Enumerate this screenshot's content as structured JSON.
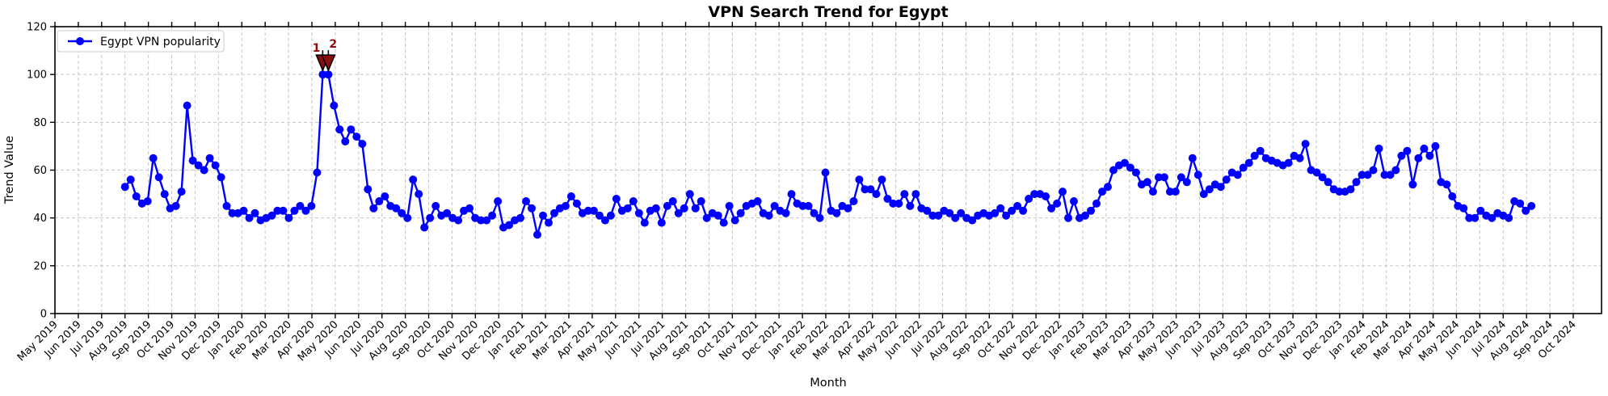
{
  "chart_data": {
    "type": "line",
    "title": "VPN Search Trend for Egypt",
    "xlabel": "Month",
    "ylabel": "Trend Value",
    "legend_label": "Egypt VPN popularity",
    "legend_location": "upper left",
    "grid": true,
    "ylim": [
      0,
      120
    ],
    "yticks": [
      0,
      20,
      40,
      60,
      80,
      100,
      120
    ],
    "line_color": "#0000ff",
    "marker": "circle",
    "annotation_color": "#8b0e0e",
    "cadence": "weekly",
    "x_start_label": "Aug 2019",
    "x_end_label": "Jul 2024",
    "x_tick_labels": [
      "May 2019",
      "Jun 2019",
      "Jul 2019",
      "Aug 2019",
      "Sep 2019",
      "Oct 2019",
      "Nov 2019",
      "Dec 2019",
      "Jan 2020",
      "Feb 2020",
      "Mar 2020",
      "Apr 2020",
      "May 2020",
      "Jun 2020",
      "Jul 2020",
      "Aug 2020",
      "Sep 2020",
      "Oct 2020",
      "Nov 2020",
      "Dec 2020",
      "Jan 2021",
      "Feb 2021",
      "Mar 2021",
      "Apr 2021",
      "May 2021",
      "Jun 2021",
      "Jul 2021",
      "Aug 2021",
      "Sep 2021",
      "Oct 2021",
      "Nov 2021",
      "Dec 2021",
      "Jan 2022",
      "Feb 2022",
      "Mar 2022",
      "Apr 2022",
      "May 2022",
      "Jun 2022",
      "Jul 2022",
      "Aug 2022",
      "Sep 2022",
      "Oct 2022",
      "Nov 2022",
      "Dec 2022",
      "Jan 2023",
      "Feb 2023",
      "Mar 2023",
      "Apr 2023",
      "May 2023",
      "Jun 2023",
      "Jul 2023",
      "Aug 2023",
      "Sep 2023",
      "Oct 2023",
      "Nov 2023",
      "Dec 2023",
      "Jan 2024",
      "Feb 2024",
      "Mar 2024",
      "Apr 2024",
      "May 2024",
      "Jun 2024",
      "Jul 2024",
      "Aug 2024",
      "Sep 2024",
      "Oct 2024"
    ],
    "values": [
      53,
      56,
      49,
      46,
      47,
      65,
      57,
      50,
      44,
      45,
      51,
      87,
      64,
      62,
      60,
      65,
      62,
      57,
      45,
      42,
      42,
      43,
      40,
      42,
      39,
      40,
      41,
      43,
      43,
      40,
      43,
      45,
      43,
      45,
      59,
      100,
      100,
      87,
      77,
      72,
      77,
      74,
      71,
      52,
      44,
      47,
      49,
      45,
      44,
      42,
      40,
      56,
      50,
      36,
      40,
      45,
      41,
      42,
      40,
      39,
      43,
      44,
      40,
      39,
      39,
      41,
      47,
      36,
      37,
      39,
      40,
      47,
      44,
      33,
      41,
      38,
      42,
      44,
      45,
      49,
      46,
      42,
      43,
      43,
      41,
      39,
      41,
      48,
      43,
      44,
      47,
      42,
      38,
      43,
      44,
      38,
      45,
      47,
      42,
      44,
      50,
      44,
      47,
      40,
      42,
      41,
      38,
      45,
      39,
      42,
      45,
      46,
      47,
      42,
      41,
      45,
      43,
      42,
      50,
      46,
      45,
      45,
      42,
      40,
      59,
      43,
      42,
      45,
      44,
      47,
      56,
      52,
      52,
      50,
      56,
      48,
      46,
      46,
      50,
      45,
      50,
      44,
      43,
      41,
      41,
      43,
      42,
      40,
      42,
      40,
      39,
      41,
      42,
      41,
      42,
      44,
      41,
      43,
      45,
      43,
      48,
      50,
      50,
      49,
      44,
      46,
      51,
      40,
      47,
      40,
      41,
      43,
      46,
      51,
      53,
      60,
      62,
      63,
      61,
      59,
      54,
      55,
      51,
      57,
      57,
      51,
      51,
      57,
      55,
      65,
      58,
      50,
      52,
      54,
      53,
      56,
      59,
      58,
      61,
      63,
      66,
      68,
      65,
      64,
      63,
      62,
      63,
      66,
      65,
      71,
      60,
      59,
      57,
      55,
      52,
      51,
      51,
      52,
      55,
      58,
      58,
      60,
      69,
      58,
      58,
      60,
      66,
      68,
      54,
      65,
      69,
      66,
      70,
      55,
      54,
      49,
      45,
      44,
      40,
      40,
      43,
      41,
      40,
      42,
      41,
      40,
      47,
      46,
      43,
      45
    ],
    "annotations": [
      {
        "label": "1",
        "point_index": 35,
        "value": 100
      },
      {
        "label": "2",
        "point_index": 36,
        "value": 100
      }
    ]
  }
}
